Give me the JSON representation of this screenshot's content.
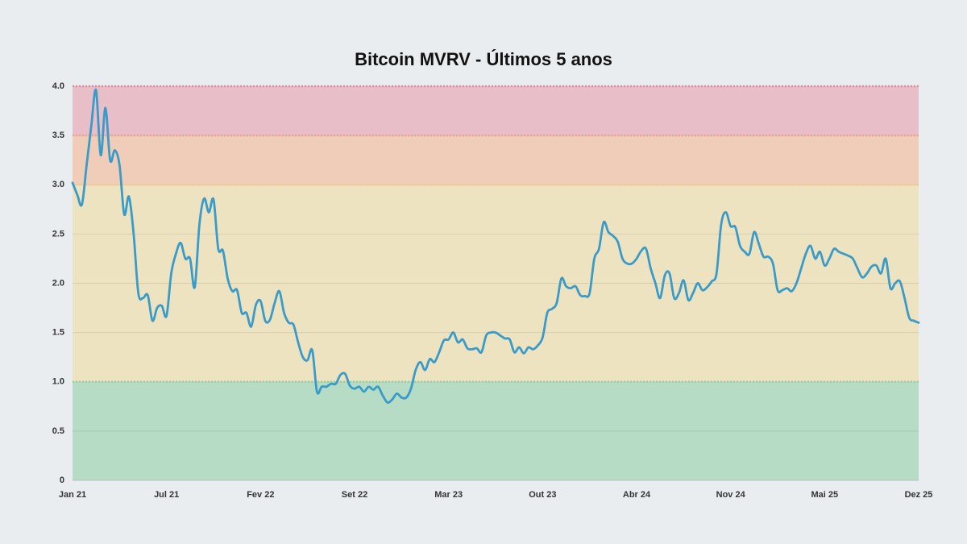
{
  "chart_data": {
    "type": "line",
    "title": "Bitcoin MVRV - Últimos 5 anos",
    "categories": [
      "Jan 21",
      null,
      null,
      null,
      null,
      null,
      null,
      null,
      null,
      null,
      null,
      null,
      null,
      null,
      null,
      null,
      null,
      null,
      null,
      null,
      "Jul 21",
      null,
      null,
      null,
      null,
      null,
      null,
      null,
      null,
      null,
      null,
      null,
      null,
      null,
      null,
      null,
      null,
      null,
      null,
      null,
      "Fev 22",
      null,
      null,
      null,
      null,
      null,
      null,
      null,
      null,
      null,
      null,
      null,
      null,
      null,
      null,
      null,
      null,
      null,
      null,
      null,
      "Set 22",
      null,
      null,
      null,
      null,
      null,
      null,
      null,
      null,
      null,
      null,
      null,
      null,
      null,
      null,
      null,
      null,
      null,
      null,
      null,
      "Mar 23",
      null,
      null,
      null,
      null,
      null,
      null,
      null,
      null,
      null,
      null,
      null,
      null,
      null,
      null,
      null,
      null,
      null,
      null,
      null,
      "Out 23",
      null,
      null,
      null,
      null,
      null,
      null,
      null,
      null,
      null,
      null,
      null,
      null,
      null,
      null,
      null,
      null,
      null,
      null,
      null,
      "Abr 24",
      null,
      null,
      null,
      null,
      null,
      null,
      null,
      null,
      null,
      null,
      null,
      null,
      null,
      null,
      null,
      null,
      null,
      null,
      null,
      "Nov 24",
      null,
      null,
      null,
      null,
      null,
      null,
      null,
      null,
      null,
      null,
      null,
      null,
      null,
      null,
      null,
      null,
      null,
      null,
      null,
      "Mai 25",
      null,
      null,
      null,
      null,
      null,
      null,
      null,
      null,
      null,
      null,
      null,
      null,
      null,
      null,
      null,
      null,
      null,
      null,
      null,
      "Dez 25"
    ],
    "series": [
      {
        "color": "#3a9bc8",
        "values": [
          3.02,
          2.9,
          2.8,
          3.2,
          3.6,
          3.96,
          3.3,
          3.78,
          3.25,
          3.35,
          3.2,
          2.7,
          2.88,
          2.5,
          1.9,
          1.85,
          1.88,
          1.62,
          1.75,
          1.77,
          1.67,
          2.1,
          2.3,
          2.41,
          2.25,
          2.25,
          1.96,
          2.6,
          2.86,
          2.72,
          2.85,
          2.35,
          2.33,
          2.05,
          1.92,
          1.93,
          1.7,
          1.7,
          1.56,
          1.78,
          1.82,
          1.62,
          1.63,
          1.8,
          1.92,
          1.7,
          1.6,
          1.58,
          1.4,
          1.25,
          1.22,
          1.32,
          0.9,
          0.95,
          0.95,
          0.98,
          0.98,
          1.07,
          1.08,
          0.96,
          0.93,
          0.95,
          0.9,
          0.95,
          0.92,
          0.95,
          0.86,
          0.79,
          0.82,
          0.88,
          0.84,
          0.84,
          0.93,
          1.12,
          1.2,
          1.12,
          1.23,
          1.2,
          1.3,
          1.42,
          1.43,
          1.5,
          1.4,
          1.43,
          1.34,
          1.33,
          1.34,
          1.3,
          1.47,
          1.5,
          1.5,
          1.47,
          1.44,
          1.43,
          1.3,
          1.35,
          1.29,
          1.35,
          1.33,
          1.37,
          1.45,
          1.7,
          1.74,
          1.8,
          2.05,
          1.97,
          1.95,
          1.97,
          1.88,
          1.87,
          1.9,
          2.25,
          2.35,
          2.62,
          2.52,
          2.48,
          2.42,
          2.25,
          2.2,
          2.2,
          2.25,
          2.33,
          2.35,
          2.15,
          2.0,
          1.85,
          2.08,
          2.1,
          1.85,
          1.9,
          2.03,
          1.83,
          1.9,
          2.0,
          1.93,
          1.96,
          2.02,
          2.1,
          2.6,
          2.72,
          2.58,
          2.57,
          2.38,
          2.32,
          2.3,
          2.52,
          2.4,
          2.27,
          2.27,
          2.2,
          1.93,
          1.93,
          1.95,
          1.92,
          2.0,
          2.15,
          2.3,
          2.38,
          2.25,
          2.32,
          2.18,
          2.25,
          2.35,
          2.32,
          2.3,
          2.28,
          2.25,
          2.15,
          2.06,
          2.1,
          2.17,
          2.18,
          2.1,
          2.25,
          1.95,
          2.0,
          2.02,
          1.85,
          1.65,
          1.62,
          1.6
        ]
      }
    ],
    "ylim": [
      0,
      4
    ],
    "yticks": [
      0,
      0.5,
      {
        "value": 1,
        "label": "1.0"
      },
      1.5,
      {
        "value": 2,
        "label": "2.0"
      },
      2.5,
      {
        "value": 3,
        "label": "3.0"
      },
      3.5,
      {
        "value": 4,
        "label": "4.0"
      }
    ],
    "grid": true,
    "bands": [
      {
        "from": 0,
        "to": 1,
        "color": "#b7dcc6"
      },
      {
        "from": 1,
        "to": 3,
        "color": "#ede3c1"
      },
      {
        "from": 3,
        "to": 3.5,
        "color": "#efcdb9"
      },
      {
        "from": 3.5,
        "to": 4,
        "color": "#e8bec9"
      }
    ],
    "thresholds": [
      {
        "value": 1,
        "color": "#93d3a2"
      },
      {
        "value": 3,
        "color": "#f3c98d"
      },
      {
        "value": 3.5,
        "color": "#efa78c"
      },
      {
        "value": 4,
        "color": "#de8c9c"
      }
    ]
  }
}
